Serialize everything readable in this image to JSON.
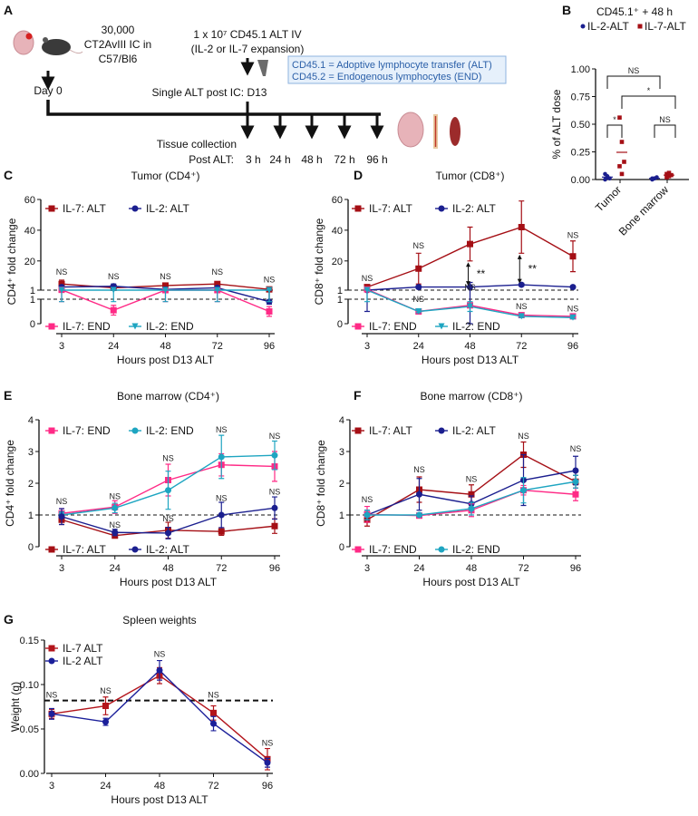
{
  "colors": {
    "il7_alt": "#a50f15",
    "il2_alt": "#1b1f8f",
    "il7_end": "#ff2a86",
    "il2_end": "#1ea5c1",
    "info_box_fill": "#e6f0fb",
    "info_box_stroke": "#8fb3df"
  },
  "panel_a": {
    "label": "A",
    "inoculation_line1": "30,000",
    "inoculation_line2": "CT2AvIII IC in",
    "inoculation_line3": "C57/Bl6",
    "day0": "Day 0",
    "alt_line1": "1 x 10⁷ CD45.1 ALT IV",
    "alt_line2": "(IL-2 or IL-7 expansion)",
    "single_alt": "Single ALT post IC: D13",
    "info_line1": "CD45.1 = Adoptive lymphocyte transfer (ALT)",
    "info_line2": "CD45.2 = Endogenous lymphocytes (END)",
    "tissue_collection": "Tissue collection",
    "post_alt_prefix": "Post ALT:",
    "timepoints": [
      "3 h",
      "24 h",
      "48 h",
      "72 h",
      "96 h"
    ],
    "icons": [
      "brain-icon",
      "mouse-icon",
      "bone-icon",
      "spleen-icon"
    ]
  },
  "chart_data": [
    {
      "panel": "B",
      "type": "scatter",
      "title": "CD45.1⁺ + 48 h",
      "ylabel": "% of ALT dose",
      "categories": [
        "Tumor",
        "Bone marrow"
      ],
      "ylim": [
        0,
        1
      ],
      "yticks": [
        "0.00",
        "0.25",
        "0.50",
        "0.75",
        "1.00"
      ],
      "series": [
        {
          "name": "IL-2-ALT",
          "color": "#1b1f8f",
          "marker": "circle",
          "values": [
            [
              0.05,
              0.02,
              0.01,
              0.0,
              0.03
            ],
            [
              0.01,
              0.01,
              0.02,
              0.0,
              0.01
            ]
          ]
        },
        {
          "name": "IL-7-ALT",
          "color": "#a50f15",
          "marker": "square",
          "values": [
            [
              0.56,
              0.34,
              0.16,
              0.12,
              0.05
            ],
            [
              0.05,
              0.03,
              0.04,
              0.02,
              0.06
            ]
          ]
        }
      ],
      "significance": [
        {
          "text": "NS",
          "between": "Tumor IL-2 vs Bone marrow IL-2"
        },
        {
          "text": "*",
          "between": "Tumor IL-7 vs Bone marrow IL-7"
        },
        {
          "text": "*",
          "between": "Tumor IL-2 vs Tumor IL-7"
        },
        {
          "text": "NS",
          "between": "Bone marrow IL-2 vs Bone marrow IL-7"
        }
      ]
    },
    {
      "panel": "C",
      "type": "line",
      "title": "Tumor (CD4⁺)",
      "ylabel": "CD4⁺ fold change",
      "xlabel": "Hours post D13 ALT",
      "x": [
        3,
        24,
        48,
        72,
        96
      ],
      "split_axis": true,
      "ylim_upper": [
        1,
        60
      ],
      "ylim_lower": [
        0,
        1
      ],
      "yticks_upper": [
        1,
        20,
        40,
        60
      ],
      "yticks_lower": [
        0,
        1
      ],
      "reference_line": 1,
      "series": [
        {
          "name": "IL-7: ALT",
          "legend": "top",
          "color": "#a50f15",
          "marker": "square",
          "y": [
            5,
            2.5,
            4,
            5,
            1.5
          ],
          "err": [
            2.5,
            1,
            1,
            1.5,
            0.6
          ]
        },
        {
          "name": "IL-2: ALT",
          "legend": "top",
          "color": "#1b1f8f",
          "marker": "circle",
          "y": [
            3,
            3.5,
            1.5,
            2.5,
            0.9
          ],
          "err": [
            1,
            1.5,
            0.3,
            0.8,
            0.1
          ]
        },
        {
          "name": "IL-7: END",
          "legend": "bottom",
          "color": "#ff2a86",
          "marker": "square",
          "y": [
            1.2,
            0.55,
            1,
            1,
            0.5
          ],
          "err": [
            0.3,
            0.2,
            0.1,
            0.1,
            0.2
          ]
        },
        {
          "name": "IL-2: END",
          "legend": "bottom",
          "color": "#1ea5c1",
          "marker": "triangle",
          "y": [
            1,
            1,
            1,
            1,
            1
          ],
          "err": [
            0.1,
            0.1,
            0.1,
            0.1,
            0.1
          ]
        }
      ],
      "annotations": [
        {
          "x": 3,
          "y": 11,
          "text": "NS"
        },
        {
          "x": 24,
          "y": 8,
          "text": "NS"
        },
        {
          "x": 48,
          "y": 8,
          "text": "NS"
        },
        {
          "x": 72,
          "y": 11,
          "text": "NS"
        },
        {
          "x": 96,
          "y": 6,
          "text": "NS"
        }
      ]
    },
    {
      "panel": "D",
      "type": "line",
      "title": "Tumor (CD8⁺)",
      "ylabel": "CD8⁺ fold change",
      "xlabel": "Hours post D13 ALT",
      "x": [
        3,
        24,
        48,
        72,
        96
      ],
      "split_axis": true,
      "ylim_upper": [
        1,
        60
      ],
      "ylim_lower": [
        0,
        1
      ],
      "yticks_upper": [
        1,
        20,
        40,
        60
      ],
      "yticks_lower": [
        0,
        1
      ],
      "reference_line": 1,
      "series": [
        {
          "name": "IL-7: ALT",
          "legend": "top",
          "color": "#a50f15",
          "marker": "square",
          "y": [
            3,
            15,
            31,
            42,
            23
          ],
          "err": [
            1,
            10,
            11,
            17,
            10
          ]
        },
        {
          "name": "IL-2: ALT",
          "legend": "top",
          "color": "#1b1f8f",
          "marker": "circle",
          "y": [
            1,
            3,
            3,
            4.5,
            3
          ],
          "err": [
            0.5,
            1,
            3,
            1,
            0.5
          ]
        },
        {
          "name": "IL-7: END",
          "legend": "bottom",
          "color": "#ff2a86",
          "marker": "square",
          "y": [
            1.5,
            0.5,
            0.75,
            0.35,
            0.3
          ],
          "err": [
            0.2,
            0.05,
            0.1,
            0.05,
            0.05
          ]
        },
        {
          "name": "IL-2: END",
          "legend": "bottom",
          "color": "#1ea5c1",
          "marker": "triangle",
          "y": [
            1,
            0.5,
            0.7,
            0.3,
            0.25
          ],
          "err": [
            0.1,
            0.05,
            0.2,
            0.05,
            0.05
          ]
        }
      ],
      "annotations": [
        {
          "x": 3,
          "y": 7,
          "text": "NS"
        },
        {
          "x": 24,
          "y": 28,
          "text": "NS"
        },
        {
          "x": 48,
          "y": 1.05,
          "text": "NS"
        },
        {
          "x": 24,
          "y": 0.88,
          "text": "NS"
        },
        {
          "x": 72,
          "y": 0.6,
          "text": "NS"
        },
        {
          "x": 96,
          "y": 35,
          "text": "NS"
        },
        {
          "x": 96,
          "y": 0.5,
          "text": "NS"
        }
      ],
      "significance": [
        {
          "x": 48,
          "text": "**"
        },
        {
          "x": 72,
          "text": "**"
        }
      ]
    },
    {
      "panel": "E",
      "type": "line",
      "title": "Bone marrow (CD4⁺)",
      "ylabel": "CD4⁺ fold change",
      "xlabel": "Hours post D13 ALT",
      "x": [
        3,
        24,
        48,
        72,
        96
      ],
      "ylim": [
        0,
        4
      ],
      "yticks": [
        0,
        1,
        2,
        3,
        4
      ],
      "reference_line": 1,
      "series": [
        {
          "name": "IL-7: END",
          "legend": "top",
          "color": "#ff2a86",
          "marker": "square",
          "y": [
            1.05,
            1.25,
            2.1,
            2.58,
            2.53
          ],
          "err": [
            0.15,
            0.2,
            0.5,
            0.35,
            0.47
          ]
        },
        {
          "name": "IL-2: END",
          "legend": "top",
          "color": "#1ea5c1",
          "marker": "circle",
          "y": [
            1.0,
            1.22,
            1.78,
            2.83,
            2.88
          ],
          "err": [
            0.1,
            0.15,
            0.6,
            0.68,
            0.45
          ]
        },
        {
          "name": "IL-7: ALT",
          "legend": "bottom",
          "color": "#a50f15",
          "marker": "square",
          "y": [
            0.85,
            0.35,
            0.52,
            0.48,
            0.65
          ],
          "err": [
            0.15,
            0.05,
            0.25,
            0.12,
            0.23
          ]
        },
        {
          "name": "IL-2: ALT",
          "legend": "bottom",
          "color": "#1b1f8f",
          "marker": "circle",
          "y": [
            0.95,
            0.45,
            0.43,
            1.0,
            1.22
          ],
          "err": [
            0.25,
            0.1,
            0.18,
            0.4,
            0.35
          ]
        }
      ],
      "annotations": [
        {
          "x": 3,
          "y": 1.35,
          "text": "NS"
        },
        {
          "x": 24,
          "y": 1.5,
          "text": "NS"
        },
        {
          "x": 48,
          "y": 2.7,
          "text": "NS"
        },
        {
          "x": 72,
          "y": 3.6,
          "text": "NS"
        },
        {
          "x": 96,
          "y": 3.4,
          "text": "NS"
        },
        {
          "x": 24,
          "y": 0.6,
          "text": "NS"
        },
        {
          "x": 48,
          "y": 0.8,
          "text": "NS"
        },
        {
          "x": 72,
          "y": 1.45,
          "text": "NS"
        },
        {
          "x": 96,
          "y": 1.65,
          "text": "NS"
        }
      ]
    },
    {
      "panel": "F",
      "type": "line",
      "title": "Bone marrow (CD8⁺)",
      "ylabel": "CD8⁺ fold change",
      "xlabel": "Hours post D13 ALT",
      "x": [
        3,
        24,
        48,
        72,
        96
      ],
      "ylim": [
        0,
        4
      ],
      "yticks": [
        0,
        1,
        2,
        3,
        4
      ],
      "reference_line": 1,
      "series": [
        {
          "name": "IL-7: ALT",
          "legend": "top",
          "color": "#a50f15",
          "marker": "square",
          "y": [
            0.85,
            1.8,
            1.65,
            2.9,
            2.05
          ],
          "err": [
            0.2,
            0.4,
            0.3,
            0.4,
            0.2
          ]
        },
        {
          "name": "IL-2: ALT",
          "legend": "top",
          "color": "#1b1f8f",
          "marker": "circle",
          "y": [
            1.0,
            1.65,
            1.35,
            2.1,
            2.4
          ],
          "err": [
            0.15,
            0.5,
            0.25,
            0.8,
            0.45
          ]
        },
        {
          "name": "IL-7: END",
          "legend": "bottom",
          "color": "#ff2a86",
          "marker": "square",
          "y": [
            1.02,
            0.98,
            1.15,
            1.78,
            1.65
          ],
          "err": [
            0.25,
            0.05,
            0.2,
            0.15,
            0.2
          ]
        },
        {
          "name": "IL-2: END",
          "legend": "bottom",
          "color": "#1ea5c1",
          "marker": "circle",
          "y": [
            1.0,
            1.0,
            1.2,
            1.78,
            2.05
          ],
          "err": [
            0.15,
            0.05,
            0.2,
            0.4,
            0.2
          ]
        }
      ],
      "annotations": [
        {
          "x": 3,
          "y": 1.4,
          "text": "NS"
        },
        {
          "x": 24,
          "y": 2.35,
          "text": "NS"
        },
        {
          "x": 48,
          "y": 2.05,
          "text": "NS"
        },
        {
          "x": 72,
          "y": 3.4,
          "text": "NS"
        },
        {
          "x": 96,
          "y": 3.0,
          "text": "NS"
        }
      ]
    },
    {
      "panel": "G",
      "type": "line",
      "title": "Spleen weights",
      "ylabel": "Weight (g)",
      "xlabel": "Hours post D13 ALT",
      "x": [
        3,
        24,
        48,
        72,
        96
      ],
      "ylim": [
        0,
        0.15
      ],
      "yticks": [
        "0.00",
        "0.05",
        "0.10",
        "0.15"
      ],
      "reference_line": 0.082,
      "series": [
        {
          "name": "IL-7 ALT",
          "legend": "top",
          "color": "#b3141b",
          "marker": "square",
          "y": [
            0.067,
            0.076,
            0.11,
            0.068,
            0.016
          ],
          "err": [
            0.005,
            0.01,
            0.009,
            0.008,
            0.012
          ]
        },
        {
          "name": "IL-2 ALT",
          "legend": "top",
          "color": "#1b1f9a",
          "marker": "circle",
          "y": [
            0.067,
            0.058,
            0.116,
            0.056,
            0.012
          ],
          "err": [
            0.006,
            0.004,
            0.011,
            0.008,
            0.005
          ]
        }
      ],
      "annotations": [
        {
          "x": 3,
          "y": 0.085,
          "text": "NS"
        },
        {
          "x": 24,
          "y": 0.09,
          "text": "NS"
        },
        {
          "x": 48,
          "y": 0.131,
          "text": "NS"
        },
        {
          "x": 72,
          "y": 0.085,
          "text": "NS"
        },
        {
          "x": 96,
          "y": 0.031,
          "text": "NS"
        }
      ]
    }
  ]
}
